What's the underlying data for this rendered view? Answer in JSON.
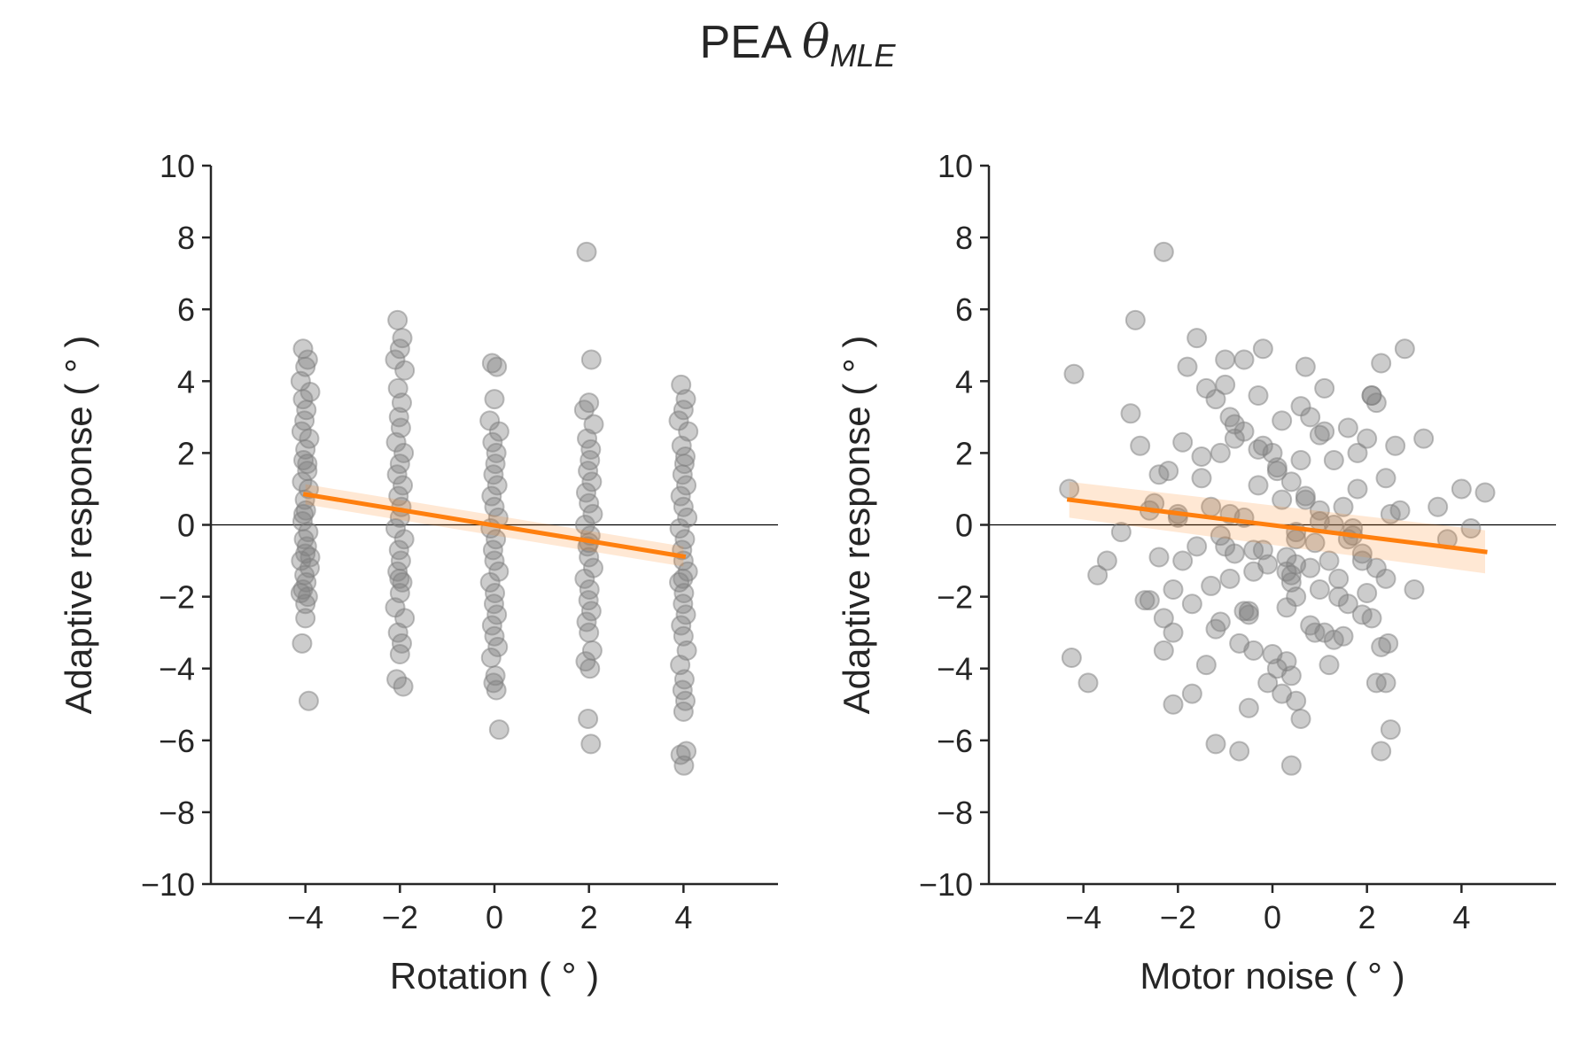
{
  "figure": {
    "title_prefix": "PEA ",
    "title_symbol": "θ",
    "title_subscript": "MLE"
  },
  "chart_data": [
    {
      "type": "scatter",
      "xlabel": "Rotation ( ° )",
      "ylabel": "Adaptive response ( ° )",
      "xlim": [
        -6,
        6
      ],
      "ylim": [
        -10,
        10
      ],
      "xticks": [
        -4,
        -2,
        0,
        2,
        4
      ],
      "xtick_labels": [
        "−4",
        "−2",
        "0",
        "2",
        "4"
      ],
      "yticks": [
        -10,
        -8,
        -6,
        -4,
        -2,
        0,
        2,
        4,
        6,
        8,
        10
      ],
      "ytick_labels": [
        "−10",
        "−8",
        "−6",
        "−4",
        "−2",
        "0",
        "2",
        "4",
        "6",
        "8",
        "10"
      ],
      "grid": false,
      "reference_line_y": 0,
      "point_color": "#808080",
      "fit_color": "#ff7f0e",
      "fit_line": {
        "x": [
          -4,
          4
        ],
        "y": [
          0.85,
          -0.88
        ],
        "ci_halfwidth": [
          0.28,
          0.28
        ]
      },
      "points": {
        "x": [
          -4.05,
          -3.95,
          -4.0,
          -4.1,
          -3.9,
          -4.05,
          -3.98,
          -4.02,
          -4.08,
          -3.92,
          -4.0,
          -4.04,
          -3.96,
          -4.07,
          -3.93,
          -4.01,
          -3.99,
          -4.06,
          -3.94,
          -4.03,
          -3.97,
          -4.0,
          -4.09,
          -3.91,
          -4.02,
          -3.98,
          -4.05,
          -3.95,
          -4.0,
          -4.1,
          -3.9,
          -4.04,
          -3.96,
          -4.0,
          -4.07,
          -3.93,
          -2.05,
          -1.95,
          -2.0,
          -2.1,
          -1.9,
          -2.04,
          -1.96,
          -2.02,
          -1.98,
          -2.08,
          -1.92,
          -2.0,
          -2.06,
          -1.94,
          -2.03,
          -1.97,
          -2.0,
          -2.09,
          -1.91,
          -2.02,
          -1.98,
          -2.05,
          -1.95,
          -2.0,
          -2.1,
          -1.9,
          -2.04,
          -1.96,
          -2.0,
          -2.07,
          -1.93,
          -2.01,
          -0.05,
          0.05,
          0.0,
          -0.1,
          0.1,
          -0.04,
          0.04,
          0.02,
          -0.02,
          0.06,
          -0.06,
          0.0,
          0.08,
          -0.08,
          0.03,
          -0.03,
          0.0,
          0.09,
          -0.09,
          0.01,
          -0.01,
          0.05,
          -0.05,
          0.0,
          0.07,
          -0.07,
          0.02,
          -0.02,
          0.04,
          0.1,
          1.95,
          2.05,
          2.0,
          1.9,
          2.1,
          1.96,
          2.04,
          2.02,
          1.98,
          2.06,
          1.94,
          2.0,
          2.08,
          1.92,
          2.03,
          1.97,
          2.0,
          2.09,
          1.91,
          2.01,
          1.99,
          2.05,
          1.95,
          2.0,
          2.07,
          1.93,
          2.02,
          1.98,
          2.04,
          2.0,
          3.95,
          4.05,
          4.0,
          3.9,
          4.1,
          3.96,
          4.04,
          4.02,
          3.98,
          4.06,
          3.94,
          4.0,
          4.08,
          3.92,
          4.03,
          3.97,
          4.0,
          4.09,
          3.91,
          4.01,
          3.99,
          4.05,
          3.95,
          4.0,
          4.07,
          3.93,
          4.02,
          3.98,
          4.04,
          4.0,
          4.06,
          3.94,
          4.01,
          3.99
        ],
        "y": [
          4.9,
          4.6,
          4.4,
          4.0,
          3.7,
          3.5,
          3.2,
          2.9,
          2.6,
          2.4,
          2.1,
          1.8,
          1.5,
          1.2,
          1.0,
          0.7,
          0.4,
          0.1,
          -0.2,
          -0.4,
          -0.6,
          -0.8,
          -1.0,
          -1.2,
          -1.4,
          -1.6,
          -1.8,
          -2.0,
          -2.2,
          -1.9,
          -0.9,
          0.3,
          1.7,
          -2.6,
          -3.3,
          -4.9,
          5.7,
          5.2,
          4.9,
          4.6,
          4.3,
          3.8,
          3.4,
          3.0,
          2.7,
          2.3,
          2.0,
          1.7,
          1.4,
          1.1,
          0.8,
          0.5,
          0.2,
          -0.1,
          -0.4,
          -0.7,
          -1.0,
          -1.3,
          -1.6,
          -1.9,
          -2.3,
          -2.6,
          -3.0,
          -3.3,
          -3.6,
          -4.3,
          -4.5,
          -1.5,
          4.5,
          4.4,
          3.5,
          2.9,
          2.6,
          2.3,
          2.0,
          1.7,
          1.4,
          1.1,
          0.8,
          0.5,
          0.2,
          -0.1,
          -0.4,
          -0.7,
          -1.0,
          -1.3,
          -1.6,
          -1.9,
          -2.2,
          -2.5,
          -2.8,
          -3.1,
          -3.4,
          -3.7,
          -4.2,
          -4.4,
          -4.6,
          -5.7,
          7.6,
          4.6,
          3.4,
          3.2,
          2.8,
          2.4,
          2.1,
          1.8,
          1.5,
          1.2,
          0.9,
          0.6,
          0.3,
          0.0,
          -0.3,
          -0.6,
          -0.9,
          -1.2,
          -1.5,
          -1.8,
          -2.1,
          -2.4,
          -2.7,
          -3.0,
          -3.5,
          -3.8,
          -4.0,
          -5.4,
          -6.1,
          -0.5,
          3.9,
          3.5,
          3.2,
          2.9,
          2.6,
          2.2,
          1.9,
          1.7,
          1.4,
          1.1,
          0.8,
          0.5,
          0.2,
          -0.1,
          -0.4,
          -0.7,
          -1.0,
          -1.3,
          -1.6,
          -1.9,
          -2.2,
          -2.5,
          -2.8,
          -3.1,
          -3.5,
          -3.9,
          -4.3,
          -4.6,
          -4.9,
          -5.2,
          -6.3,
          -6.4,
          -6.7,
          -1.5
        ]
      }
    },
    {
      "type": "scatter",
      "xlabel": "Motor noise ( ° )",
      "ylabel": "Adaptive response ( ° )",
      "xlim": [
        -6,
        6
      ],
      "ylim": [
        -10,
        10
      ],
      "xticks": [
        -4,
        -2,
        0,
        2,
        4
      ],
      "xtick_labels": [
        "−4",
        "−2",
        "0",
        "2",
        "4"
      ],
      "yticks": [
        -10,
        -8,
        -6,
        -4,
        -2,
        0,
        2,
        4,
        6,
        8,
        10
      ],
      "ytick_labels": [
        "−10",
        "−8",
        "−6",
        "−4",
        "−2",
        "0",
        "2",
        "4",
        "6",
        "8",
        "10"
      ],
      "grid": false,
      "reference_line_y": 0,
      "point_color": "#808080",
      "fit_color": "#ff7f0e",
      "fit_line": {
        "x": [
          -4.3,
          4.5
        ],
        "y": [
          0.7,
          -0.75
        ],
        "ci_halfwidth": [
          0.5,
          0.6
        ]
      },
      "points": {
        "x": [
          -4.2,
          -4.25,
          -4.3,
          -3.9,
          -3.7,
          -3.5,
          -3.2,
          -3.0,
          -2.9,
          -2.8,
          -2.7,
          -2.6,
          -2.5,
          -2.4,
          -2.3,
          -2.2,
          -2.1,
          -2.0,
          -1.9,
          -1.8,
          -1.7,
          -1.6,
          -1.5,
          -1.4,
          -1.3,
          -1.2,
          -1.1,
          -1.0,
          -0.9,
          -0.8,
          -0.7,
          -0.6,
          -0.5,
          -0.4,
          -0.3,
          -0.2,
          -0.1,
          0.0,
          0.1,
          0.2,
          0.3,
          0.4,
          0.5,
          0.6,
          0.7,
          0.8,
          0.9,
          1.0,
          1.1,
          1.2,
          1.3,
          1.4,
          1.5,
          1.6,
          1.7,
          1.8,
          1.9,
          2.0,
          2.1,
          2.2,
          2.3,
          2.4,
          2.5,
          2.6,
          2.7,
          2.8,
          3.0,
          3.2,
          3.5,
          3.7,
          4.0,
          4.2,
          4.5,
          -1.2,
          -0.9,
          -0.6,
          -0.3,
          0.1,
          0.4,
          0.7,
          1.0,
          1.3,
          1.6,
          1.9,
          2.2,
          -2.4,
          -1.5,
          -0.8,
          0.2,
          0.6,
          1.1,
          1.8,
          2.4,
          -2.0,
          -1.1,
          -0.2,
          0.5,
          1.4,
          2.0,
          -1.7,
          -0.5,
          0.8,
          1.5,
          2.3,
          -2.6,
          -1.3,
          -0.4,
          0.3,
          0.9,
          1.7,
          2.5,
          -2.1,
          -0.7,
          0.0,
          1.2,
          -1.9,
          -1.0,
          0.4,
          1.0,
          1.6,
          2.1,
          -0.1,
          0.2,
          -0.5,
          0.6,
          -1.4,
          1.3,
          -2.3,
          2.2,
          -0.3,
          0.7,
          -0.9,
          0.5,
          -1.6,
          1.9,
          0.1,
          -0.2,
          0.3,
          0.4,
          0.5,
          -0.6,
          -1.1,
          1.1,
          -0.8,
          0.8,
          2.3,
          2.4,
          2.45,
          0.4,
          -2.3,
          -1.2,
          -2.1,
          0.3,
          0.5,
          -0.6,
          -1.0,
          1.0,
          2.1,
          -0.4
        ],
        "y": [
          4.2,
          -3.7,
          1.0,
          -4.4,
          -1.4,
          -1.0,
          -0.2,
          3.1,
          5.7,
          2.2,
          -2.1,
          0.4,
          0.6,
          -0.9,
          7.6,
          1.5,
          -5.0,
          0.3,
          2.3,
          4.4,
          -4.7,
          5.2,
          1.3,
          3.8,
          0.5,
          -2.9,
          2.0,
          4.6,
          -1.5,
          2.8,
          -6.3,
          0.2,
          -2.4,
          -0.7,
          3.6,
          4.9,
          -1.1,
          2.0,
          -4.0,
          0.7,
          -2.3,
          -6.7,
          -0.4,
          1.8,
          4.4,
          3.0,
          -3.0,
          0.1,
          3.8,
          -1.0,
          1.8,
          -2.0,
          0.5,
          2.7,
          -0.3,
          1.0,
          -2.5,
          2.4,
          3.6,
          -4.4,
          4.5,
          -1.5,
          -5.7,
          2.2,
          0.4,
          4.9,
          -1.8,
          2.4,
          0.5,
          -0.4,
          1.0,
          -0.1,
          0.9,
          3.5,
          3.0,
          2.6,
          2.1,
          1.6,
          1.2,
          0.8,
          0.4,
          0.0,
          -0.4,
          -0.8,
          -1.2,
          1.4,
          1.9,
          2.4,
          2.9,
          3.3,
          2.6,
          2.0,
          1.3,
          0.2,
          -0.3,
          -0.7,
          -1.1,
          -1.5,
          -1.9,
          -2.2,
          -2.5,
          -2.8,
          -3.1,
          -3.4,
          -2.1,
          -1.7,
          -1.3,
          -0.9,
          -0.5,
          -0.1,
          0.3,
          -3.0,
          -3.3,
          -3.6,
          -3.9,
          -1.0,
          -0.6,
          -1.4,
          -1.8,
          -2.2,
          -2.6,
          -4.4,
          -4.7,
          -5.1,
          -5.4,
          -3.9,
          -3.2,
          -3.5,
          3.4,
          1.1,
          0.7,
          0.3,
          -0.2,
          -0.6,
          -1.0,
          1.5,
          2.2,
          -1.3,
          -1.6,
          -2.0,
          -2.4,
          -2.7,
          -3.0,
          -0.8,
          -1.2,
          -6.3,
          -4.4,
          -3.3,
          -4.2,
          -2.6,
          -6.1,
          -1.8,
          -3.8,
          -4.9,
          4.6,
          3.9,
          2.5,
          3.6,
          -3.5
        ]
      }
    }
  ]
}
